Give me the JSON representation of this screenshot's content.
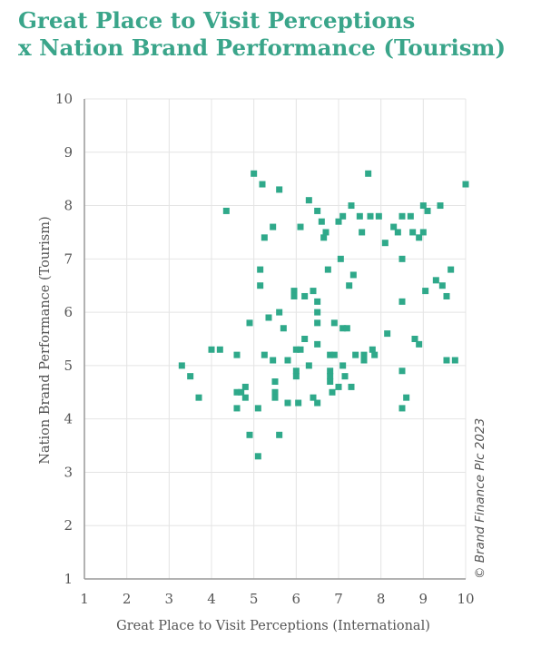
{
  "title_line1": "Great Place to Visit Perceptions",
  "title_line2": "x Nation Brand Performance (Tourism)",
  "credit": "© Brand Finance Plc 2023",
  "colors": {
    "title": "#3aa58a",
    "marker": "#2fa98a",
    "grid": "#e4e4e4",
    "axis": "#999999",
    "text": "#555555"
  },
  "chart_data": {
    "type": "scatter",
    "title": "Great Place to Visit Perceptions x Nation Brand Performance (Tourism)",
    "xlabel": "Great Place to Visit Perceptions (International)",
    "ylabel": "Nation Brand Performance (Tourism)",
    "xlim": [
      1,
      10
    ],
    "ylim": [
      1,
      10
    ],
    "xticks": [
      "1",
      "2",
      "3",
      "4",
      "5",
      "6",
      "7",
      "8",
      "9",
      "10"
    ],
    "yticks": [
      "1",
      "2",
      "3",
      "4",
      "5",
      "6",
      "7",
      "8",
      "9",
      "10"
    ],
    "grid": true,
    "points": [
      [
        3.3,
        5.0
      ],
      [
        3.5,
        4.8
      ],
      [
        3.7,
        4.4
      ],
      [
        4.0,
        5.3
      ],
      [
        4.2,
        5.3
      ],
      [
        4.35,
        7.9
      ],
      [
        4.6,
        5.2
      ],
      [
        4.6,
        4.5
      ],
      [
        4.6,
        4.2
      ],
      [
        4.7,
        4.5
      ],
      [
        4.8,
        4.6
      ],
      [
        4.8,
        4.4
      ],
      [
        4.9,
        5.8
      ],
      [
        4.9,
        3.7
      ],
      [
        5.0,
        8.6
      ],
      [
        5.1,
        3.3
      ],
      [
        5.1,
        4.2
      ],
      [
        5.15,
        6.8
      ],
      [
        5.15,
        6.5
      ],
      [
        5.2,
        8.4
      ],
      [
        5.25,
        7.4
      ],
      [
        5.25,
        5.2
      ],
      [
        5.35,
        5.9
      ],
      [
        5.45,
        7.6
      ],
      [
        5.45,
        5.1
      ],
      [
        5.5,
        4.7
      ],
      [
        5.5,
        4.5
      ],
      [
        5.5,
        4.4
      ],
      [
        5.6,
        8.3
      ],
      [
        5.6,
        6.0
      ],
      [
        5.6,
        3.7
      ],
      [
        5.7,
        5.7
      ],
      [
        5.8,
        5.1
      ],
      [
        5.8,
        4.3
      ],
      [
        5.95,
        6.4
      ],
      [
        5.95,
        6.3
      ],
      [
        6.0,
        5.3
      ],
      [
        6.0,
        4.9
      ],
      [
        6.0,
        4.8
      ],
      [
        6.05,
        4.3
      ],
      [
        6.1,
        7.6
      ],
      [
        6.1,
        5.3
      ],
      [
        6.2,
        6.3
      ],
      [
        6.2,
        5.5
      ],
      [
        6.3,
        8.1
      ],
      [
        6.3,
        5.0
      ],
      [
        6.4,
        6.4
      ],
      [
        6.4,
        4.4
      ],
      [
        6.5,
        7.9
      ],
      [
        6.5,
        6.2
      ],
      [
        6.5,
        6.0
      ],
      [
        6.5,
        5.8
      ],
      [
        6.5,
        5.4
      ],
      [
        6.5,
        4.3
      ],
      [
        6.6,
        7.7
      ],
      [
        6.65,
        7.4
      ],
      [
        6.7,
        7.5
      ],
      [
        6.75,
        6.8
      ],
      [
        6.8,
        5.2
      ],
      [
        6.8,
        4.9
      ],
      [
        6.8,
        4.8
      ],
      [
        6.8,
        4.7
      ],
      [
        6.85,
        4.5
      ],
      [
        6.9,
        5.8
      ],
      [
        6.9,
        5.2
      ],
      [
        7.0,
        4.6
      ],
      [
        7.0,
        7.7
      ],
      [
        7.05,
        7.0
      ],
      [
        7.1,
        7.8
      ],
      [
        7.1,
        5.7
      ],
      [
        7.1,
        5.0
      ],
      [
        7.15,
        4.8
      ],
      [
        7.2,
        5.7
      ],
      [
        7.25,
        6.5
      ],
      [
        7.3,
        8.0
      ],
      [
        7.3,
        4.6
      ],
      [
        7.35,
        6.7
      ],
      [
        7.4,
        5.2
      ],
      [
        7.5,
        7.8
      ],
      [
        7.55,
        7.5
      ],
      [
        7.6,
        5.1
      ],
      [
        7.6,
        5.2
      ],
      [
        7.7,
        8.6
      ],
      [
        7.75,
        7.8
      ],
      [
        7.8,
        5.3
      ],
      [
        7.85,
        5.2
      ],
      [
        7.95,
        7.8
      ],
      [
        8.1,
        7.3
      ],
      [
        8.15,
        5.6
      ],
      [
        8.3,
        7.6
      ],
      [
        8.4,
        7.5
      ],
      [
        8.5,
        7.8
      ],
      [
        8.5,
        7.0
      ],
      [
        8.5,
        6.2
      ],
      [
        8.5,
        4.9
      ],
      [
        8.5,
        4.2
      ],
      [
        8.6,
        4.4
      ],
      [
        8.7,
        7.8
      ],
      [
        8.75,
        7.5
      ],
      [
        8.8,
        5.5
      ],
      [
        8.9,
        7.4
      ],
      [
        8.9,
        5.4
      ],
      [
        9.0,
        8.0
      ],
      [
        9.0,
        7.5
      ],
      [
        9.05,
        6.4
      ],
      [
        9.1,
        7.9
      ],
      [
        9.3,
        6.6
      ],
      [
        9.4,
        8.0
      ],
      [
        9.45,
        6.5
      ],
      [
        9.55,
        5.1
      ],
      [
        9.55,
        6.3
      ],
      [
        9.65,
        6.8
      ],
      [
        9.75,
        5.1
      ],
      [
        10.0,
        8.4
      ]
    ]
  }
}
